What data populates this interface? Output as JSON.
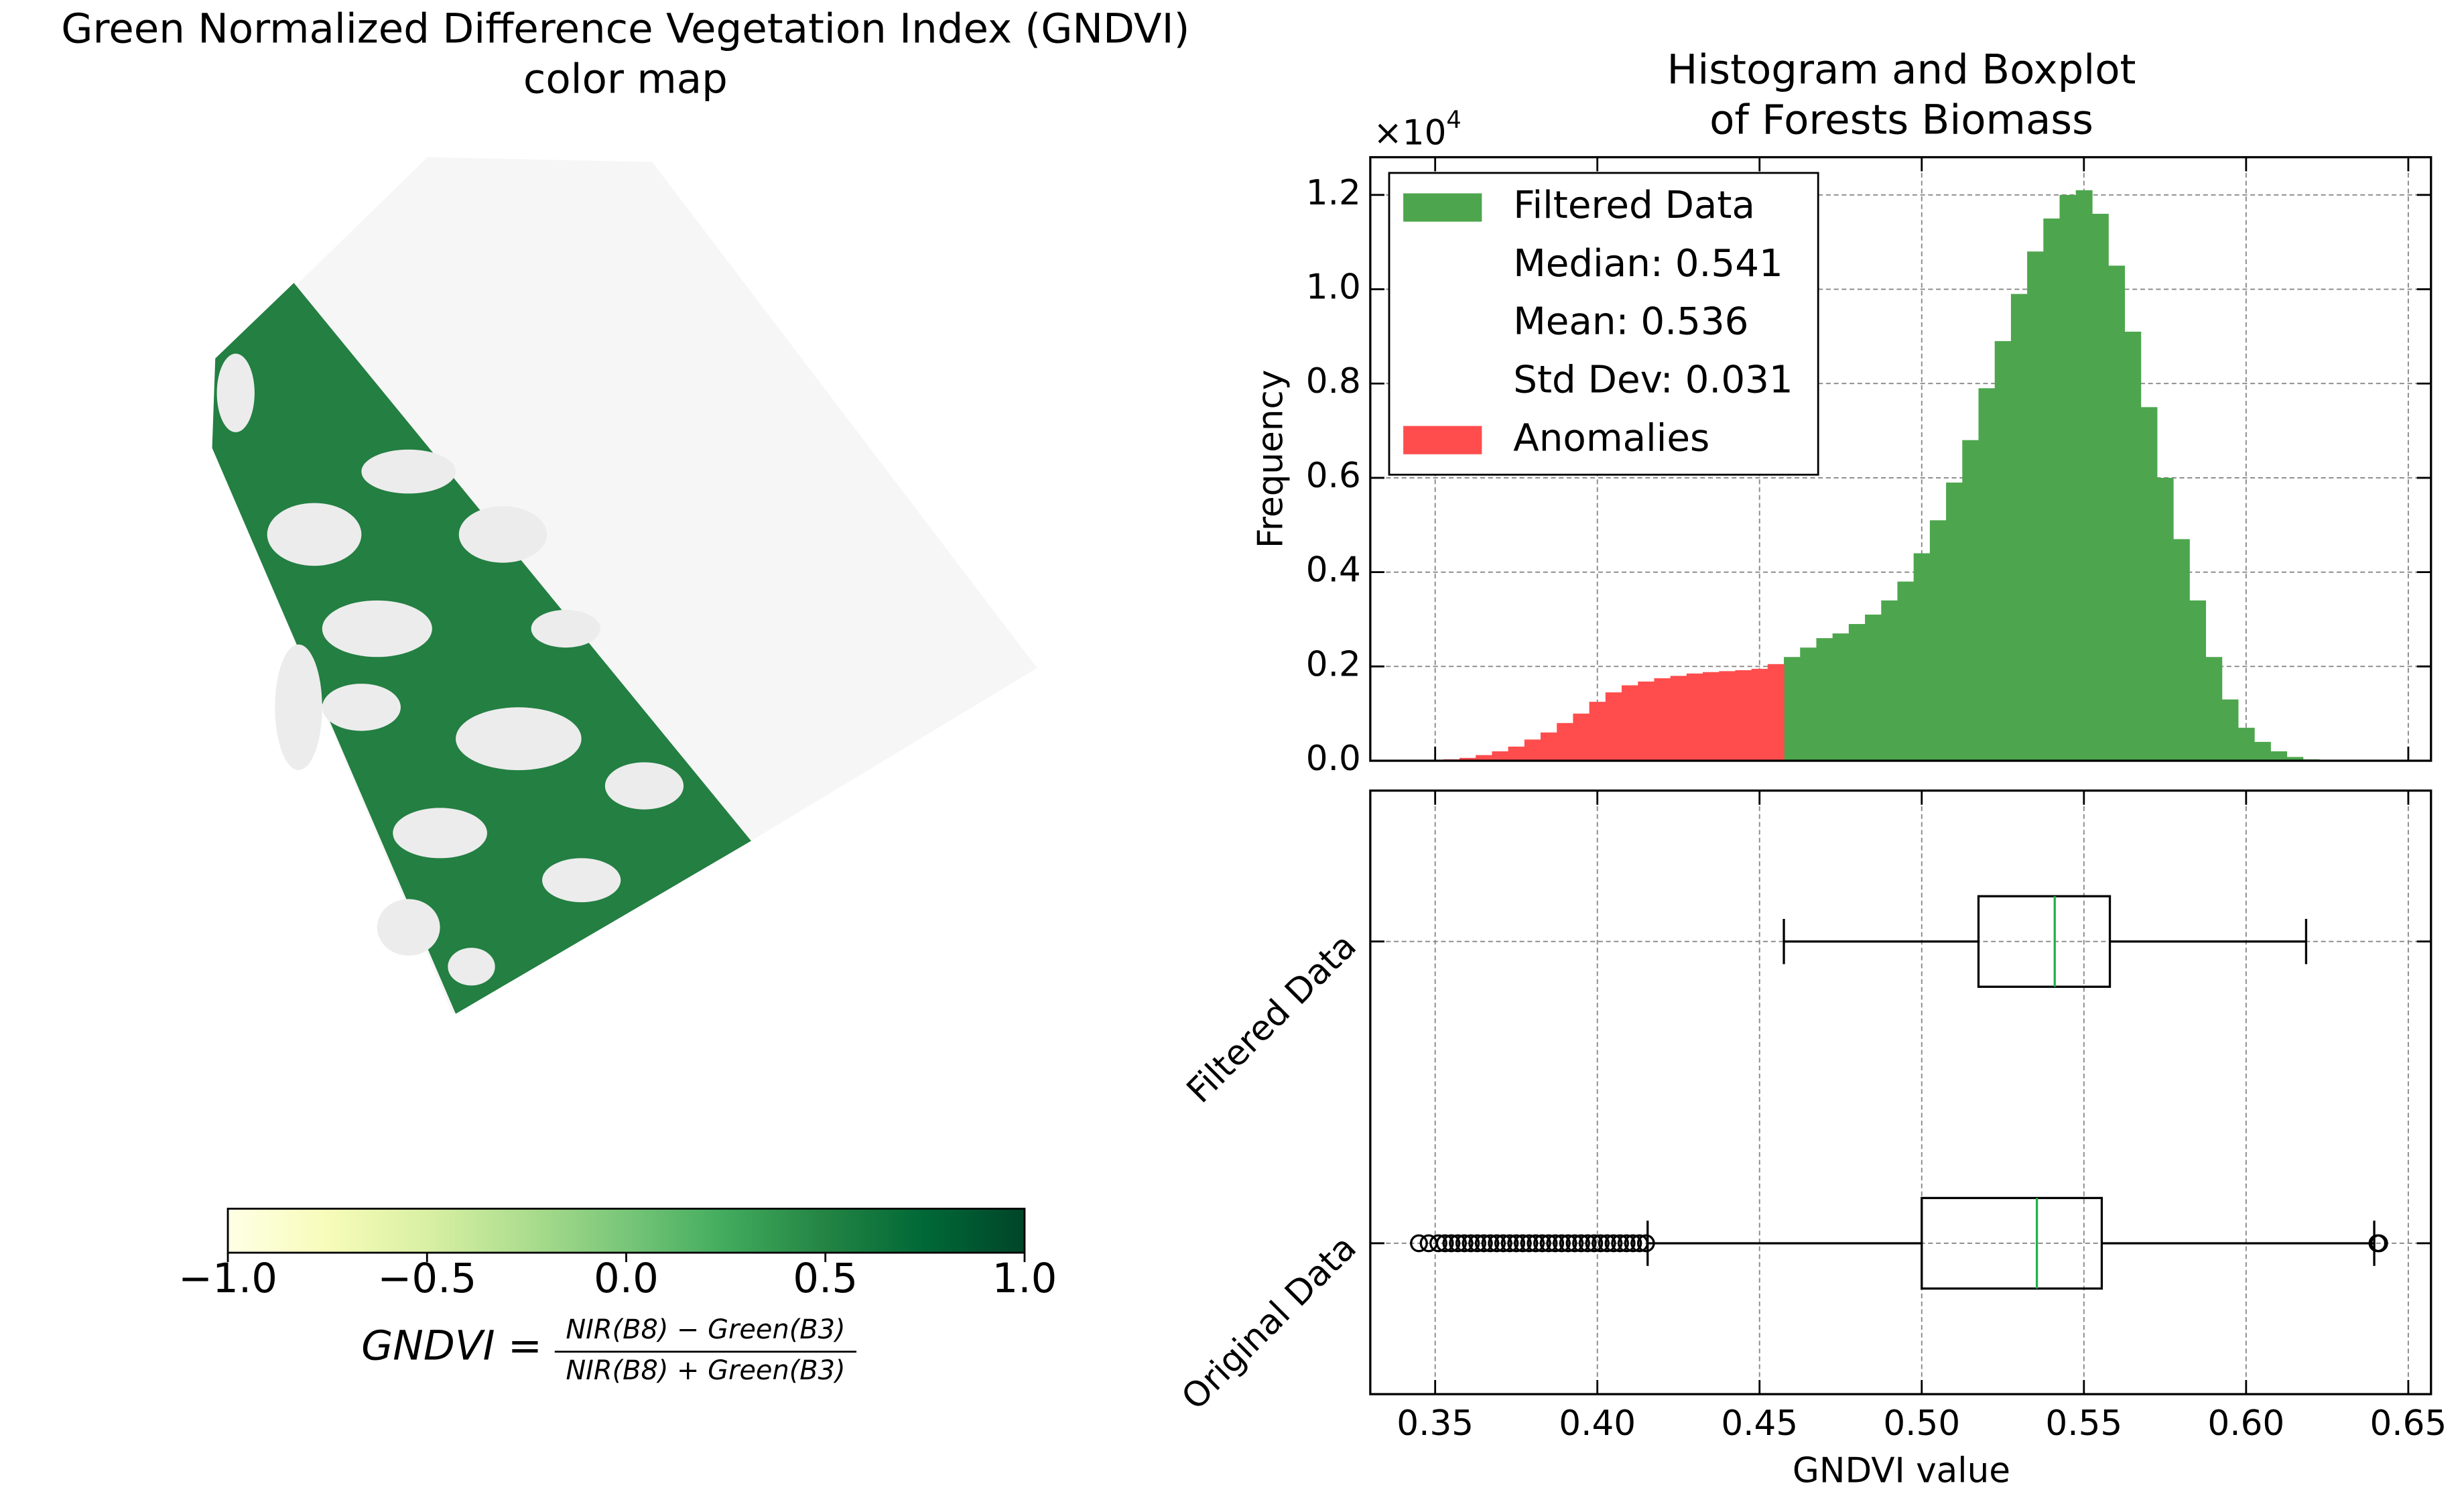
{
  "chart_data": [
    {
      "type": "image",
      "title": [
        "Green Normalized Difference Vegetation Index (GNDVI)",
        "color map"
      ],
      "colormap": [
        "#ffffe5",
        "#f7fcb9",
        "#d9f0a3",
        "#addd8e",
        "#78c679",
        "#41ab5d",
        "#238443",
        "#006837",
        "#004529"
      ],
      "clim": [
        -1,
        1
      ],
      "colorbar_ticks": [
        {
          "value": -1,
          "label": "−1.0"
        },
        {
          "value": -0.5,
          "label": "−0.5"
        },
        {
          "value": 0,
          "label": "0.0"
        },
        0.5,
        {
          "value": 1,
          "label": "1.0"
        }
      ],
      "formula": {
        "lhs": "GNDVI =",
        "numerator": "NIR(B8) − Green(B3)",
        "denominator": "NIR(B8) + Green(B3)"
      }
    },
    {
      "type": "histogram",
      "title": [
        "Histogram and Boxplot",
        "of Forests Biomass"
      ],
      "ylabel": "Frequency",
      "y_offset": {
        "base": "×10",
        "exponent": "4"
      },
      "xlim": [
        0.33,
        0.657
      ],
      "ylim": [
        0,
        1.28
      ],
      "xticks": [
        0.35,
        0.4,
        0.45,
        0.5,
        0.55,
        0.6,
        0.65
      ],
      "yticks": [
        {
          "value": 0,
          "label": "0.0"
        },
        0.2,
        0.4,
        0.6,
        0.8,
        {
          "value": 1,
          "label": "1.0"
        },
        1.2
      ],
      "grid": true,
      "legend_loc": "upper left",
      "legend_stats": [
        "Median: 0.541",
        "Mean: 0.536",
        "Std Dev: 0.031"
      ],
      "series": [
        {
          "name": "Filtered Data",
          "color": "#4da64d",
          "bins": [
            0.4575,
            0.4625,
            0.4675,
            0.4725,
            0.4775,
            0.4825,
            0.4875,
            0.4925,
            0.4975,
            0.5025,
            0.5075,
            0.5125,
            0.5175,
            0.5225,
            0.5275,
            0.5325,
            0.5375,
            0.5425,
            0.5475,
            0.5525,
            0.5575,
            0.5625,
            0.5675,
            0.5725,
            0.5775,
            0.5825,
            0.5875,
            0.5925,
            0.5975,
            0.6025,
            0.6075,
            0.6125,
            0.6175,
            0.6225
          ],
          "values": [
            0.22,
            0.24,
            0.26,
            0.27,
            0.29,
            0.31,
            0.34,
            0.38,
            0.44,
            0.51,
            0.59,
            0.68,
            0.79,
            0.89,
            0.99,
            1.08,
            1.15,
            1.2,
            1.21,
            1.16,
            1.05,
            0.91,
            0.75,
            0.6,
            0.47,
            0.34,
            0.22,
            0.13,
            0.07,
            0.04,
            0.02,
            0.008,
            0.003
          ]
        },
        {
          "name": "Anomalies",
          "color": "#ff4d4d",
          "bins": [
            0.3475,
            0.3525,
            0.3575,
            0.3625,
            0.3675,
            0.3725,
            0.3775,
            0.3825,
            0.3875,
            0.3925,
            0.3975,
            0.4025,
            0.4075,
            0.4125,
            0.4175,
            0.4225,
            0.4275,
            0.4325,
            0.4375,
            0.4425,
            0.4475,
            0.4525,
            0.4575
          ],
          "values": [
            0.001,
            0.003,
            0.006,
            0.012,
            0.02,
            0.03,
            0.045,
            0.06,
            0.08,
            0.1,
            0.125,
            0.145,
            0.16,
            0.168,
            0.175,
            0.18,
            0.185,
            0.188,
            0.19,
            0.192,
            0.195,
            0.205
          ]
        }
      ]
    },
    {
      "type": "boxplot",
      "xlabel": "GNDVI value",
      "xlim": [
        0.33,
        0.657
      ],
      "xticks": [
        0.35,
        {
          "value": 0.4,
          "label": "0.40"
        },
        0.45,
        {
          "value": 0.5,
          "label": "0.50"
        },
        0.55,
        {
          "value": 0.6,
          "label": "0.60"
        },
        0.65
      ],
      "grid": true,
      "median_color": "#22b04a",
      "categories": [
        "Original Data",
        "Filtered Data"
      ],
      "boxes": [
        {
          "whislo": 0.4155,
          "q1": 0.5,
          "med": 0.5355,
          "q3": 0.5555,
          "whishi": 0.6395,
          "fliers": [
            0.345,
            0.348,
            0.351,
            0.353,
            0.355,
            0.357,
            0.359,
            0.361,
            0.363,
            0.365,
            0.367,
            0.369,
            0.371,
            0.373,
            0.375,
            0.377,
            0.379,
            0.381,
            0.383,
            0.385,
            0.387,
            0.389,
            0.391,
            0.393,
            0.395,
            0.397,
            0.399,
            0.401,
            0.403,
            0.405,
            0.407,
            0.409,
            0.411,
            0.413,
            0.415,
            0.6405,
            0.641
          ]
        },
        {
          "whislo": 0.4575,
          "q1": 0.5175,
          "med": 0.541,
          "q3": 0.558,
          "whishi": 0.6185,
          "fliers": []
        }
      ]
    }
  ]
}
